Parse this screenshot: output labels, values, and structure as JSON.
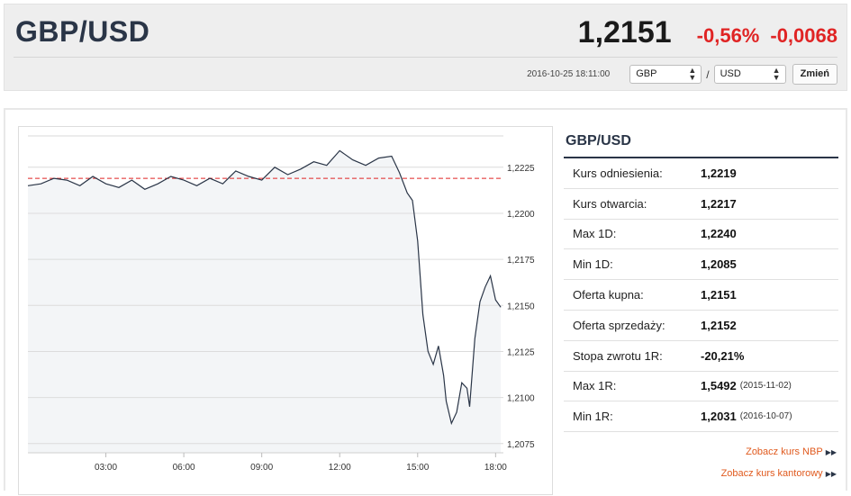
{
  "header": {
    "pair": "GBP/USD",
    "rate": "1,2151",
    "change_pct": "-0,56%",
    "change_abs": "-0,0068",
    "timestamp": "2016-10-25 18:11:00",
    "base_currency": "GBP",
    "slash": "/",
    "quote_currency": "USD",
    "change_button": "Zmień"
  },
  "sidebar": {
    "title": "GBP/USD",
    "rows": [
      {
        "label": "Kurs odniesienia:",
        "value": "1,2219",
        "date": ""
      },
      {
        "label": "Kurs otwarcia:",
        "value": "1,2217",
        "date": ""
      },
      {
        "label": "Max 1D:",
        "value": "1,2240",
        "date": ""
      },
      {
        "label": "Min 1D:",
        "value": "1,2085",
        "date": ""
      },
      {
        "label": "Oferta kupna:",
        "value": "1,2151",
        "date": ""
      },
      {
        "label": "Oferta sprzedaży:",
        "value": "1,2152",
        "date": ""
      },
      {
        "label": "Stopa zwrotu 1R:",
        "value": "-20,21%",
        "date": ""
      },
      {
        "label": "Max 1R:",
        "value": "1,5492",
        "date": "(2015-11-02)"
      },
      {
        "label": "Min 1R:",
        "value": "1,2031",
        "date": "(2016-10-07)"
      }
    ],
    "links": [
      "Zobacz kurs NBP",
      "Zobacz kurs kantorowy"
    ]
  },
  "colors": {
    "line": "#2a3547",
    "area": "#f3f5f7",
    "reference": "#e02424",
    "negative": "#e02424",
    "link": "#e05a1e"
  },
  "chart_data": {
    "type": "line",
    "x_ticks": [
      "03:00",
      "06:00",
      "09:00",
      "12:00",
      "15:00",
      "18:00"
    ],
    "x_tick_hours": [
      3,
      6,
      9,
      12,
      15,
      18
    ],
    "y_ticks": [
      "1,2225",
      "1,2200",
      "1,2175",
      "1,2150",
      "1,2125",
      "1,2100",
      "1,2075"
    ],
    "ylim": [
      1.207,
      1.2242
    ],
    "xlim": [
      0,
      18.3
    ],
    "reference_line": 1.2219,
    "grid": true,
    "series": [
      {
        "x": [
          0.0,
          0.5,
          1.0,
          1.5,
          2.0,
          2.5,
          3.0,
          3.5,
          4.0,
          4.5,
          5.0,
          5.5,
          6.0,
          6.5,
          7.0,
          7.5,
          8.0,
          8.5,
          9.0,
          9.5,
          10.0,
          10.5,
          11.0,
          11.5,
          12.0,
          12.5,
          13.0,
          13.5,
          14.0,
          14.3,
          14.6,
          14.8,
          15.0,
          15.1,
          15.2,
          15.4,
          15.6,
          15.8,
          16.0,
          16.1,
          16.3,
          16.5,
          16.7,
          16.9,
          17.0,
          17.2,
          17.4,
          17.6,
          17.8,
          18.0,
          18.2
        ],
        "y": [
          1.2215,
          1.2216,
          1.2219,
          1.2218,
          1.2215,
          1.222,
          1.2216,
          1.2214,
          1.2218,
          1.2213,
          1.2216,
          1.222,
          1.2218,
          1.2215,
          1.2219,
          1.2216,
          1.2223,
          1.222,
          1.2218,
          1.2225,
          1.2221,
          1.2224,
          1.2228,
          1.2226,
          1.2234,
          1.2229,
          1.2226,
          1.223,
          1.2231,
          1.2222,
          1.2211,
          1.2207,
          1.2185,
          1.2165,
          1.2145,
          1.2125,
          1.2118,
          1.2128,
          1.2112,
          1.2098,
          1.2086,
          1.2092,
          1.2108,
          1.2105,
          1.2095,
          1.2132,
          1.2152,
          1.216,
          1.2166,
          1.2153,
          1.2149
        ]
      }
    ]
  }
}
